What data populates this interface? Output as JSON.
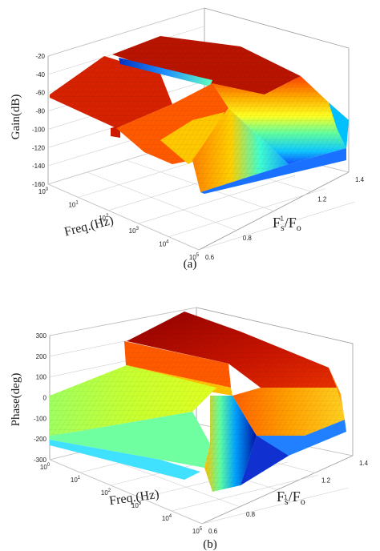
{
  "chart_data": [
    {
      "type": "surface",
      "panel_label": "(a)",
      "zlabel": "Gain(dB)",
      "xlabel": "Freq.(Hz)",
      "ylabel_main": "F",
      "ylabel_sub1": "s",
      "ylabel_slash": "/F",
      "ylabel_sub2": "o",
      "z_ticks": [
        "-20",
        "-40",
        "-60",
        "-80",
        "-100",
        "-120",
        "-140",
        "-160"
      ],
      "zlim": [
        -160,
        -20
      ],
      "x_scale": "log",
      "x_ticks": [
        {
          "base": "10",
          "exp": "0"
        },
        {
          "base": "10",
          "exp": "1"
        },
        {
          "base": "10",
          "exp": "2"
        },
        {
          "base": "10",
          "exp": "3"
        },
        {
          "base": "10",
          "exp": "4"
        },
        {
          "base": "10",
          "exp": "5"
        }
      ],
      "xlim": [
        1,
        100000
      ],
      "y_ticks": [
        "0.6",
        "0.8",
        "1",
        "1.2",
        "1.4"
      ],
      "ylim": [
        0.6,
        1.4
      ],
      "colormap": [
        "#00008f",
        "#0040ff",
        "#00c0ff",
        "#40ffbf",
        "#bfff40",
        "#ffc000",
        "#ff4000",
        "#8f0000"
      ],
      "grid": true
    },
    {
      "type": "surface",
      "panel_label": "(b)",
      "zlabel": "Phase(deg)",
      "xlabel": "Freq.(Hz)",
      "ylabel_main": "F",
      "ylabel_sub1": "s",
      "ylabel_slash": "/F",
      "ylabel_sub2": "o",
      "z_ticks": [
        "300",
        "200",
        "100",
        "0",
        "-100",
        "-200",
        "-300"
      ],
      "zlim": [
        -300,
        300
      ],
      "x_scale": "log",
      "x_ticks": [
        {
          "base": "10",
          "exp": "0"
        },
        {
          "base": "10",
          "exp": "1"
        },
        {
          "base": "10",
          "exp": "2"
        },
        {
          "base": "10",
          "exp": "3"
        },
        {
          "base": "10",
          "exp": "4"
        },
        {
          "base": "10",
          "exp": "5"
        }
      ],
      "xlim": [
        1,
        100000
      ],
      "y_ticks": [
        "0.6",
        "0.8",
        "1",
        "1.2",
        "1.4"
      ],
      "ylim": [
        0.6,
        1.4
      ],
      "colormap": [
        "#00008f",
        "#0040ff",
        "#00c0ff",
        "#40ffbf",
        "#bfff40",
        "#ffc000",
        "#ff4000",
        "#8f0000"
      ],
      "grid": true
    }
  ]
}
